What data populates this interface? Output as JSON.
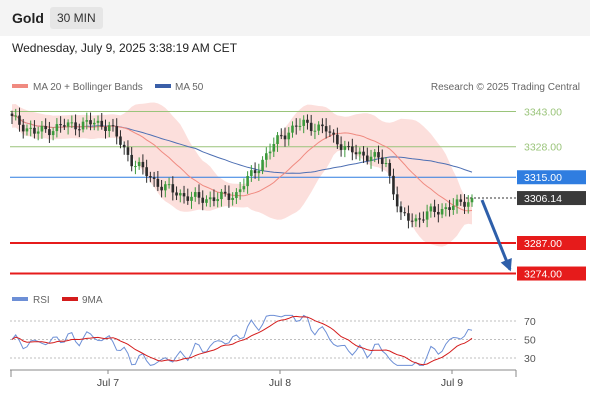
{
  "header": {
    "title": "Gold",
    "timeframe": "30 MIN"
  },
  "datetime": "Wednesday, July 9, 2025 3:38:19 AM CET",
  "legend": {
    "ma20_bb": "MA 20 + Bollinger Bands",
    "ma50": "MA 50"
  },
  "copyright": "Research © 2025 Trading Central",
  "rsi_legend": {
    "rsi": "RSI",
    "ma9": "9MA"
  },
  "colors": {
    "up": "#3c9a3c",
    "down": "#2b2b2b",
    "bollinger": "#fbd9d6",
    "ma20": "#f08a80",
    "ma50": "#4d6fb3",
    "resistance": "#9ac47a",
    "pivot": "#2f7de0",
    "support": "#e61b1b",
    "rsi": "#6d8fd6",
    "rsi_ma": "#d41c1c",
    "arrow": "#2e5faa"
  },
  "chart_data": [
    {
      "type": "candlestick",
      "title": "Gold 30 MIN",
      "x_tick_labels": [
        "Jul 7",
        "Jul 8",
        "Jul 9"
      ],
      "y_tick_labels": [
        "3343.00",
        "3328.00",
        "3315.00",
        "3306.14",
        "3287.00",
        "3274.00"
      ],
      "ylim": [
        3266,
        3356
      ],
      "levels": [
        {
          "name": "resistance_2",
          "value": 3343.0,
          "label": "3343.00",
          "kind": "resistance"
        },
        {
          "name": "resistance_1",
          "value": 3328.0,
          "label": "3328.00",
          "kind": "resistance"
        },
        {
          "name": "pivot",
          "value": 3315.0,
          "label": "3315.00",
          "kind": "pivot"
        },
        {
          "name": "last_price",
          "value": 3306.14,
          "label": "3306.14",
          "kind": "last"
        },
        {
          "name": "support_1",
          "value": 3287.0,
          "label": "3287.00",
          "kind": "support"
        },
        {
          "name": "support_2",
          "value": 3274.0,
          "label": "3274.00",
          "kind": "support"
        }
      ],
      "forecast_arrow": {
        "from": 3306.14,
        "to": 3274.0
      },
      "series": [
        {
          "name": "MA 20 + Bollinger Bands"
        },
        {
          "name": "MA 50"
        }
      ]
    },
    {
      "type": "line",
      "title": "RSI",
      "y_tick_labels": [
        "70",
        "50",
        "30"
      ],
      "ylim": [
        20,
        80
      ],
      "series": [
        {
          "name": "RSI"
        },
        {
          "name": "9MA"
        }
      ]
    }
  ]
}
